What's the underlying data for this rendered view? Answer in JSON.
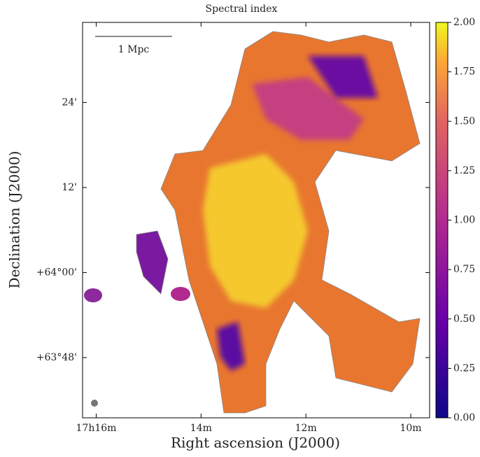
{
  "chart_data": {
    "type": "image",
    "title": "Spectral index",
    "xlabel": "Right ascension (J2000)",
    "ylabel": "Declination (J2000)",
    "xlim": [
      16.26,
      9.64
    ],
    "xticks": [
      {
        "value": 16,
        "label": "17h16m"
      },
      {
        "value": 14,
        "label": "14m"
      },
      {
        "value": 12,
        "label": "12m"
      },
      {
        "value": 10,
        "label": "10m"
      }
    ],
    "ylim": [
      -20.5,
      35.3
    ],
    "yticks": [
      {
        "value": 24,
        "label": "24'"
      },
      {
        "value": 12,
        "label": "12'"
      },
      {
        "value": 0,
        "label": "+64°00'"
      },
      {
        "value": -12,
        "label": "+63°48'"
      }
    ],
    "colorbar": {
      "lim": [
        0,
        2
      ],
      "ticks": [
        {
          "value": 0,
          "label": "0.00"
        },
        {
          "value": 0.25,
          "label": "0.25"
        },
        {
          "value": 0.5,
          "label": "0.50"
        },
        {
          "value": 0.75,
          "label": "0.75"
        },
        {
          "value": 1,
          "label": "1.00"
        },
        {
          "value": 1.25,
          "label": "1.25"
        },
        {
          "value": 1.5,
          "label": "1.50"
        },
        {
          "value": 1.75,
          "label": "1.75"
        },
        {
          "value": 2,
          "label": "2.00"
        }
      ]
    },
    "scalebar": "1 Mpc"
  }
}
